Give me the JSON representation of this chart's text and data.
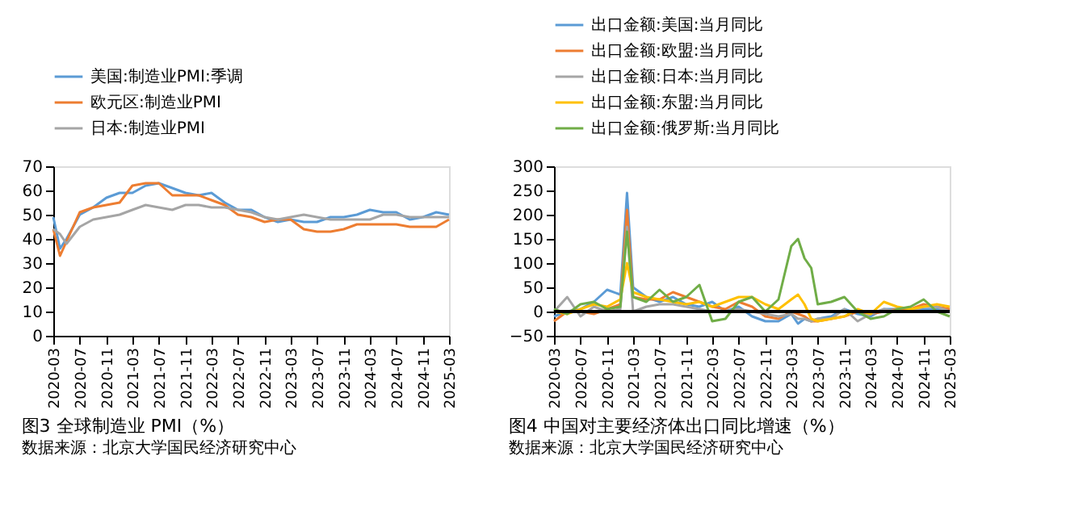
{
  "chart_data": [
    {
      "type": "line",
      "title": "图3 全球制造业 PMI（%）",
      "annotations": [
        "数据来源：北京大学国民经济研究中心"
      ],
      "legend": "top",
      "grid": false,
      "x": [
        "2020-03",
        "2020-04",
        "2020-05",
        "2020-07",
        "2020-09",
        "2020-11",
        "2021-01",
        "2021-03",
        "2021-05",
        "2021-07",
        "2021-09",
        "2021-11",
        "2022-01",
        "2022-03",
        "2022-05",
        "2022-07",
        "2022-09",
        "2022-11",
        "2023-01",
        "2023-03",
        "2023-05",
        "2023-07",
        "2023-09",
        "2023-11",
        "2024-01",
        "2024-03",
        "2024-05",
        "2024-07",
        "2024-09",
        "2024-11",
        "2025-01",
        "2025-03"
      ],
      "series": [
        {
          "name": "美国:制造业PMI:季调",
          "color": "#5b9bd5",
          "values": [
            49,
            36,
            40,
            50,
            53,
            57,
            59,
            59,
            62,
            63,
            61,
            59,
            58,
            59,
            55,
            52,
            52,
            49,
            47,
            48,
            47,
            47,
            49,
            49,
            50,
            52,
            51,
            51,
            48,
            49,
            51,
            50
          ]
        },
        {
          "name": "欧元区:制造业PMI",
          "color": "#ed7d31",
          "values": [
            44,
            33,
            39,
            51,
            53,
            54,
            55,
            62,
            63,
            63,
            58,
            58,
            58,
            56,
            54,
            50,
            49,
            47,
            48,
            48,
            44,
            43,
            43,
            44,
            46,
            46,
            46,
            46,
            45,
            45,
            45,
            48
          ]
        },
        {
          "name": "日本:制造业PMI",
          "color": "#a5a5a5",
          "values": [
            44,
            42,
            38,
            45,
            48,
            49,
            50,
            52,
            54,
            53,
            52,
            54,
            54,
            53,
            53,
            52,
            51,
            49,
            48,
            49,
            50,
            49,
            48,
            48,
            48,
            48,
            50,
            50,
            49,
            49,
            49,
            49
          ]
        }
      ],
      "xlim": [
        "2020-03",
        "2025-03"
      ],
      "xticks": [
        "2020-03",
        "2020-07",
        "2020-11",
        "2021-03",
        "2021-07",
        "2021-11",
        "2022-03",
        "2022-07",
        "2022-11",
        "2023-03",
        "2023-07",
        "2023-11",
        "2024-03",
        "2024-07",
        "2024-11",
        "2025-03"
      ],
      "ylim": [
        0,
        70
      ],
      "yticks": [
        0,
        10,
        20,
        30,
        40,
        50,
        60,
        70
      ]
    },
    {
      "type": "line",
      "title": "图4 中国对主要经济体出口同比增速（%）",
      "annotations": [
        "数据来源：北京大学国民经济研究中心"
      ],
      "legend": "top",
      "grid": false,
      "x": [
        "2020-03",
        "2020-05",
        "2020-07",
        "2020-09",
        "2020-11",
        "2021-01",
        "2021-02",
        "2021-03",
        "2021-05",
        "2021-07",
        "2021-09",
        "2021-11",
        "2022-01",
        "2022-03",
        "2022-05",
        "2022-07",
        "2022-09",
        "2022-11",
        "2023-01",
        "2023-03",
        "2023-04",
        "2023-05",
        "2023-06",
        "2023-07",
        "2023-09",
        "2023-11",
        "2024-01",
        "2024-03",
        "2024-05",
        "2024-07",
        "2024-09",
        "2024-11",
        "2025-01",
        "2025-03"
      ],
      "series": [
        {
          "name": "出口金额:美国:当月同比",
          "color": "#5b9bd5",
          "values": [
            -10,
            0,
            5,
            20,
            45,
            35,
            245,
            50,
            30,
            20,
            30,
            15,
            10,
            20,
            0,
            10,
            -10,
            -20,
            -20,
            -5,
            -25,
            -15,
            -20,
            -15,
            -10,
            5,
            -5,
            -10,
            5,
            5,
            5,
            5,
            5,
            5
          ]
        },
        {
          "name": "出口金额:欧盟:当月同比",
          "color": "#ed7d31",
          "values": [
            -20,
            0,
            0,
            -5,
            5,
            15,
            210,
            30,
            25,
            25,
            40,
            30,
            20,
            10,
            5,
            20,
            10,
            -10,
            -15,
            0,
            -5,
            -10,
            -20,
            -20,
            -15,
            -10,
            0,
            -5,
            0,
            5,
            5,
            15,
            10,
            5
          ]
        },
        {
          "name": "出口金额:日本:当月同比",
          "color": "#a5a5a5",
          "values": [
            0,
            30,
            -10,
            10,
            0,
            5,
            175,
            0,
            10,
            15,
            15,
            10,
            5,
            0,
            0,
            5,
            0,
            -5,
            -10,
            -5,
            -15,
            -15,
            -20,
            -15,
            -15,
            5,
            -20,
            -5,
            5,
            0,
            0,
            10,
            10,
            0
          ]
        },
        {
          "name": "出口金额:东盟:当月同比",
          "color": "#ffc000",
          "values": [
            0,
            -5,
            5,
            15,
            10,
            25,
            100,
            40,
            30,
            25,
            20,
            15,
            20,
            10,
            20,
            30,
            30,
            15,
            5,
            25,
            35,
            15,
            -15,
            -20,
            -15,
            -10,
            5,
            -5,
            20,
            10,
            5,
            10,
            15,
            10
          ]
        },
        {
          "name": "出口金额:俄罗斯:当月同比",
          "color": "#70ad47",
          "values": [
            5,
            -5,
            15,
            20,
            5,
            10,
            165,
            30,
            20,
            45,
            20,
            30,
            55,
            -20,
            -15,
            20,
            30,
            0,
            25,
            135,
            150,
            110,
            90,
            15,
            20,
            30,
            0,
            -15,
            -10,
            5,
            10,
            25,
            0,
            -10
          ]
        }
      ],
      "xlim": [
        "2020-03",
        "2025-03"
      ],
      "xticks": [
        "2020-03",
        "2020-07",
        "2020-11",
        "2021-03",
        "2021-07",
        "2021-11",
        "2022-03",
        "2022-07",
        "2022-11",
        "2023-03",
        "2023-07",
        "2023-11",
        "2024-03",
        "2024-07",
        "2024-11",
        "2025-03"
      ],
      "ylim": [
        -50,
        300
      ],
      "yticks": [
        -50,
        0,
        50,
        100,
        150,
        200,
        250,
        300
      ],
      "ref_lines": [
        {
          "axis": "y",
          "value": 0,
          "color": "#000000"
        }
      ]
    }
  ]
}
